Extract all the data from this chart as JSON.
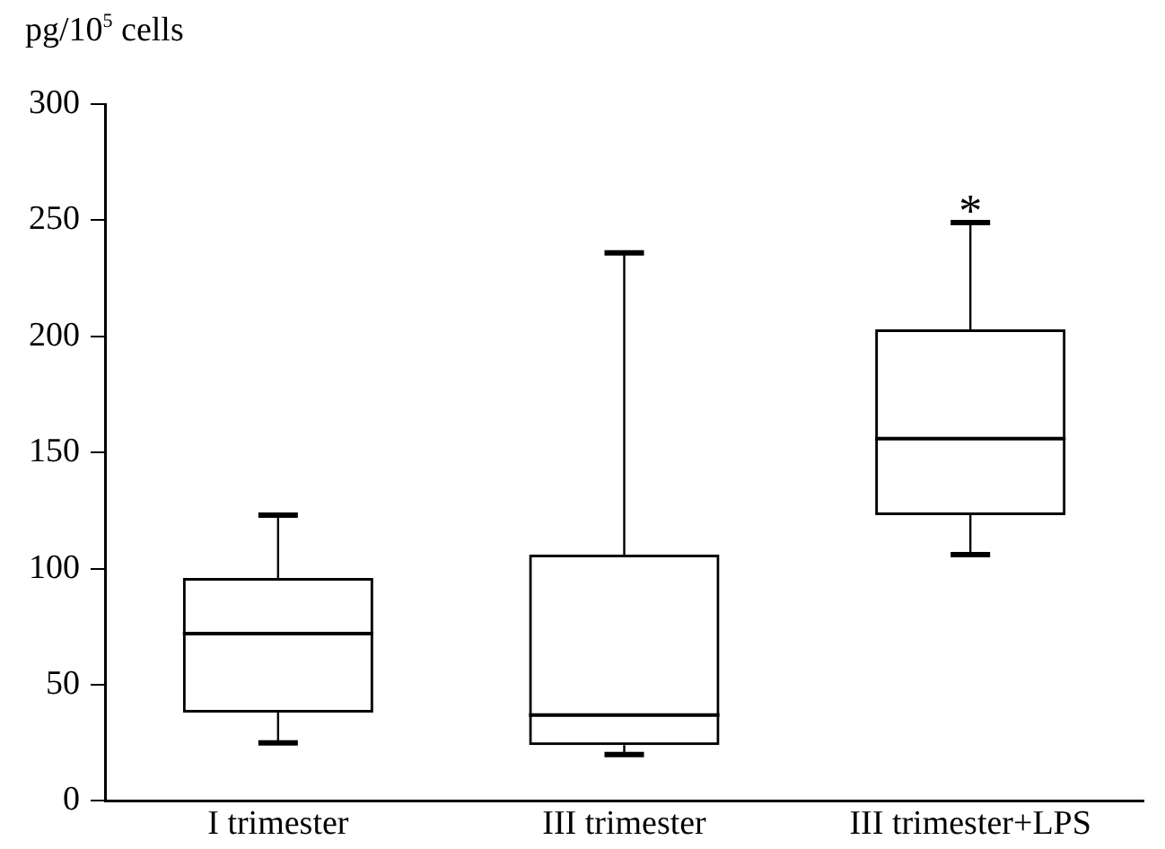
{
  "chart_data": {
    "type": "box",
    "ylabel": "pg/10$^{5}$ cells",
    "categories": [
      "I trimester",
      "III trimester",
      "III trimester+LPS"
    ],
    "boxes": [
      {
        "low": 25,
        "q1": 38,
        "median": 72,
        "q3": 96,
        "high": 123
      },
      {
        "low": 20,
        "q1": 24,
        "median": 37,
        "q3": 106,
        "high": 236
      },
      {
        "low": 106,
        "q1": 123,
        "median": 156,
        "q3": 203,
        "high": 249
      }
    ],
    "color": "#000000",
    "ylim": [
      0,
      300
    ],
    "yticks": [
      0,
      50,
      100,
      150,
      200,
      250,
      300
    ],
    "grid": false,
    "legend": false,
    "annotations": [
      {
        "text": "*",
        "x": "III trimester+LPS",
        "y": 249
      }
    ]
  }
}
